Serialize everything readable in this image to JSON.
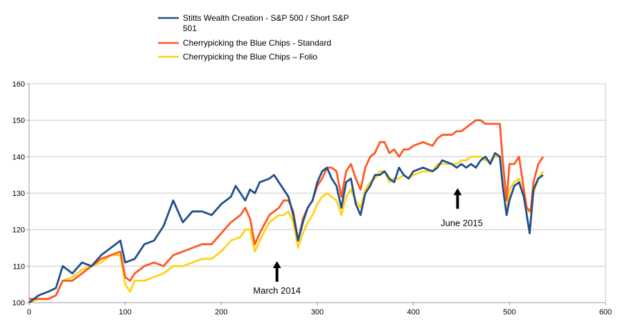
{
  "chart_data": {
    "type": "line",
    "title": "",
    "xlabel": "",
    "ylabel": "",
    "xlim": [
      0,
      600
    ],
    "ylim": [
      100,
      160
    ],
    "x_ticks": [
      "0",
      "100",
      "200",
      "300",
      "400",
      "500",
      "600"
    ],
    "y_ticks": [
      "100",
      "110",
      "120",
      "130",
      "140",
      "150",
      "160"
    ],
    "grid": "horizontal",
    "legend_position": "top-center",
    "series": [
      {
        "name": "Stitts Wealth Creation - S&P 500 / Short S&P 501",
        "legend_lines": [
          "Stitts Wealth Creation - S&P 500 / Short S&P",
          "501"
        ],
        "color": "#1f4e8c",
        "points": [
          [
            0,
            100
          ],
          [
            10,
            102
          ],
          [
            20,
            103
          ],
          [
            28,
            104
          ],
          [
            35,
            110
          ],
          [
            45,
            108
          ],
          [
            55,
            111
          ],
          [
            65,
            110
          ],
          [
            75,
            113
          ],
          [
            85,
            115
          ],
          [
            95,
            117
          ],
          [
            100,
            111
          ],
          [
            110,
            112
          ],
          [
            120,
            116
          ],
          [
            130,
            117
          ],
          [
            140,
            121
          ],
          [
            150,
            128
          ],
          [
            160,
            122
          ],
          [
            170,
            125
          ],
          [
            180,
            125
          ],
          [
            190,
            124
          ],
          [
            200,
            127
          ],
          [
            210,
            129
          ],
          [
            215,
            132
          ],
          [
            220,
            130
          ],
          [
            225,
            128
          ],
          [
            230,
            131
          ],
          [
            235,
            130
          ],
          [
            240,
            133
          ],
          [
            250,
            134
          ],
          [
            255,
            135
          ],
          [
            260,
            133
          ],
          [
            265,
            131
          ],
          [
            270,
            129
          ],
          [
            275,
            124
          ],
          [
            280,
            117
          ],
          [
            285,
            122
          ],
          [
            290,
            126
          ],
          [
            295,
            128
          ],
          [
            300,
            133
          ],
          [
            305,
            136
          ],
          [
            310,
            137
          ],
          [
            315,
            134
          ],
          [
            320,
            132
          ],
          [
            325,
            126
          ],
          [
            330,
            133
          ],
          [
            335,
            134
          ],
          [
            340,
            127
          ],
          [
            345,
            124
          ],
          [
            350,
            130
          ],
          [
            355,
            132
          ],
          [
            360,
            135
          ],
          [
            365,
            135
          ],
          [
            370,
            136
          ],
          [
            375,
            134
          ],
          [
            380,
            133
          ],
          [
            385,
            137
          ],
          [
            390,
            135
          ],
          [
            395,
            134
          ],
          [
            400,
            136
          ],
          [
            410,
            137
          ],
          [
            420,
            136
          ],
          [
            425,
            137
          ],
          [
            430,
            139
          ],
          [
            440,
            138
          ],
          [
            445,
            137
          ],
          [
            450,
            138
          ],
          [
            455,
            137
          ],
          [
            460,
            138
          ],
          [
            465,
            137
          ],
          [
            470,
            139
          ],
          [
            475,
            140
          ],
          [
            480,
            138
          ],
          [
            485,
            141
          ],
          [
            490,
            140
          ],
          [
            493,
            132
          ],
          [
            497,
            124
          ],
          [
            500,
            128
          ],
          [
            505,
            132
          ],
          [
            510,
            133
          ],
          [
            515,
            129
          ],
          [
            518,
            124
          ],
          [
            521,
            119
          ],
          [
            525,
            131
          ],
          [
            530,
            134
          ],
          [
            535,
            135
          ]
        ]
      },
      {
        "name": "Cherrypicking the Blue Chips - Standard",
        "legend_lines": [
          "Cherrypicking the Blue Chips - Standard"
        ],
        "color": "#ff5722",
        "points": [
          [
            0,
            101
          ],
          [
            10,
            101
          ],
          [
            20,
            101
          ],
          [
            28,
            102
          ],
          [
            35,
            106
          ],
          [
            45,
            106
          ],
          [
            55,
            108
          ],
          [
            65,
            110
          ],
          [
            75,
            112
          ],
          [
            85,
            113
          ],
          [
            95,
            114
          ],
          [
            100,
            107
          ],
          [
            105,
            106
          ],
          [
            110,
            108
          ],
          [
            120,
            110
          ],
          [
            130,
            111
          ],
          [
            140,
            110
          ],
          [
            150,
            113
          ],
          [
            160,
            114
          ],
          [
            170,
            115
          ],
          [
            180,
            116
          ],
          [
            190,
            116
          ],
          [
            200,
            119
          ],
          [
            210,
            122
          ],
          [
            220,
            124
          ],
          [
            225,
            126
          ],
          [
            230,
            123
          ],
          [
            235,
            116
          ],
          [
            240,
            119
          ],
          [
            250,
            124
          ],
          [
            260,
            126
          ],
          [
            265,
            128
          ],
          [
            270,
            128
          ],
          [
            275,
            125
          ],
          [
            280,
            117
          ],
          [
            285,
            123
          ],
          [
            290,
            126
          ],
          [
            295,
            128
          ],
          [
            300,
            132
          ],
          [
            305,
            134
          ],
          [
            310,
            137
          ],
          [
            315,
            137
          ],
          [
            320,
            136
          ],
          [
            325,
            129
          ],
          [
            330,
            136
          ],
          [
            335,
            138
          ],
          [
            340,
            134
          ],
          [
            345,
            131
          ],
          [
            350,
            137
          ],
          [
            355,
            140
          ],
          [
            360,
            141
          ],
          [
            365,
            144
          ],
          [
            370,
            144
          ],
          [
            375,
            141
          ],
          [
            380,
            142
          ],
          [
            385,
            140
          ],
          [
            390,
            142
          ],
          [
            395,
            142
          ],
          [
            400,
            143
          ],
          [
            410,
            144
          ],
          [
            420,
            143
          ],
          [
            425,
            145
          ],
          [
            430,
            146
          ],
          [
            440,
            146
          ],
          [
            445,
            147
          ],
          [
            450,
            147
          ],
          [
            455,
            148
          ],
          [
            460,
            149
          ],
          [
            465,
            150
          ],
          [
            470,
            150
          ],
          [
            475,
            149
          ],
          [
            480,
            149
          ],
          [
            485,
            149
          ],
          [
            490,
            149
          ],
          [
            493,
            139
          ],
          [
            497,
            128
          ],
          [
            500,
            138
          ],
          [
            505,
            138
          ],
          [
            510,
            140
          ],
          [
            515,
            131
          ],
          [
            518,
            126
          ],
          [
            522,
            125
          ],
          [
            525,
            133
          ],
          [
            530,
            138
          ],
          [
            535,
            140
          ]
        ]
      },
      {
        "name": "Cherrypicking the Blue Chips – Folio",
        "legend_lines": [
          "Cherrypicking the Blue Chips – Folio"
        ],
        "color": "#ffd319",
        "points": [
          [
            0,
            100
          ],
          [
            10,
            101
          ],
          [
            20,
            101
          ],
          [
            28,
            102
          ],
          [
            35,
            106
          ],
          [
            45,
            107
          ],
          [
            55,
            109
          ],
          [
            65,
            110
          ],
          [
            75,
            111
          ],
          [
            85,
            113
          ],
          [
            95,
            113
          ],
          [
            100,
            105
          ],
          [
            105,
            103
          ],
          [
            110,
            106
          ],
          [
            120,
            106
          ],
          [
            130,
            107
          ],
          [
            140,
            108
          ],
          [
            150,
            110
          ],
          [
            160,
            110
          ],
          [
            170,
            111
          ],
          [
            180,
            112
          ],
          [
            190,
            112
          ],
          [
            200,
            114
          ],
          [
            210,
            117
          ],
          [
            220,
            118
          ],
          [
            225,
            120
          ],
          [
            230,
            120
          ],
          [
            235,
            114
          ],
          [
            240,
            117
          ],
          [
            250,
            122
          ],
          [
            260,
            124
          ],
          [
            265,
            124
          ],
          [
            270,
            125
          ],
          [
            275,
            122
          ],
          [
            280,
            115
          ],
          [
            285,
            119
          ],
          [
            290,
            122
          ],
          [
            295,
            124
          ],
          [
            300,
            127
          ],
          [
            305,
            129
          ],
          [
            310,
            130
          ],
          [
            315,
            129
          ],
          [
            320,
            128
          ],
          [
            325,
            124
          ],
          [
            330,
            129
          ],
          [
            335,
            131
          ],
          [
            340,
            128
          ],
          [
            345,
            126
          ],
          [
            350,
            131
          ],
          [
            355,
            133
          ],
          [
            360,
            134
          ],
          [
            365,
            136
          ],
          [
            370,
            136
          ],
          [
            375,
            133
          ],
          [
            380,
            134
          ],
          [
            385,
            134
          ],
          [
            390,
            135
          ],
          [
            395,
            134
          ],
          [
            400,
            135
          ],
          [
            410,
            136
          ],
          [
            420,
            136
          ],
          [
            425,
            138
          ],
          [
            430,
            138
          ],
          [
            440,
            138
          ],
          [
            445,
            138
          ],
          [
            450,
            139
          ],
          [
            455,
            139
          ],
          [
            460,
            140
          ],
          [
            465,
            140
          ],
          [
            470,
            140
          ],
          [
            475,
            139
          ],
          [
            480,
            139
          ],
          [
            485,
            140
          ],
          [
            490,
            140
          ],
          [
            493,
            133
          ],
          [
            497,
            124
          ],
          [
            500,
            131
          ],
          [
            505,
            133
          ],
          [
            510,
            134
          ],
          [
            515,
            129
          ],
          [
            518,
            125
          ],
          [
            522,
            125
          ],
          [
            525,
            130
          ],
          [
            530,
            134
          ],
          [
            535,
            136
          ]
        ]
      }
    ],
    "annotations": [
      {
        "label": "March 2014",
        "arrow_x": 258,
        "arrow_y_tip": 111,
        "arrow_y_base": 108
      },
      {
        "label": "June 2015",
        "arrow_x": 446,
        "arrow_y_tip": 131,
        "arrow_y_base": 128
      }
    ]
  }
}
